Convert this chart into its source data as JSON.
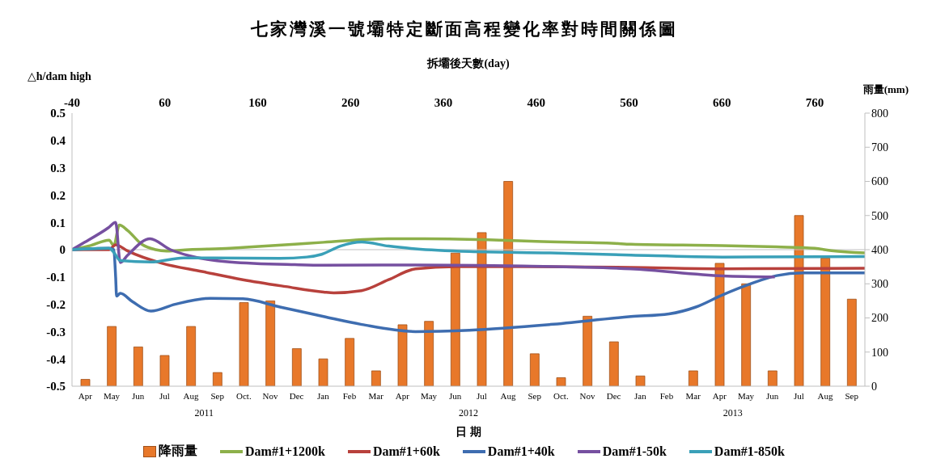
{
  "chart_data": {
    "type": "bar",
    "title": "七家灣溪一號壩特定斷面高程變化率對時間關係圖",
    "xlabel": "日 期",
    "x2label": "拆壩後天數(day)",
    "ylabel": "△h/dam high",
    "y2label": "雨量(mm)",
    "categories": [
      "Apr",
      "May",
      "Jun",
      "Jul",
      "Aug",
      "Sep",
      "Oct.",
      "Nov",
      "Dec",
      "Jan",
      "Feb",
      "Mar",
      "Apr",
      "May",
      "Jun",
      "Jul",
      "Aug",
      "Sep",
      "Oct.",
      "Nov",
      "Dec",
      "Jan",
      "Feb",
      "Mar",
      "Apr",
      "May",
      "Jun",
      "Jul",
      "Aug",
      "Sep"
    ],
    "annotations": [
      "2011",
      "2012",
      "2013"
    ],
    "ylim": [
      -0.5,
      0.5
    ],
    "yticks": [
      -0.5,
      -0.4,
      -0.3,
      -0.2,
      -0.1,
      0,
      0.1,
      0.2,
      0.3,
      0.4,
      0.5
    ],
    "y2lim": [
      0,
      800
    ],
    "y2ticks": [
      0,
      100,
      200,
      300,
      400,
      500,
      600,
      700,
      800
    ],
    "x2lim": [
      -40,
      814
    ],
    "x2ticks": [
      -40,
      60,
      160,
      260,
      360,
      460,
      560,
      660,
      760
    ],
    "ref_lines": [
      {
        "axis": "y",
        "value": 0,
        "color": "#bfbfbf"
      }
    ],
    "legend": "bottom",
    "marker": "none",
    "line_style": "solid",
    "series": [
      {
        "name": "降雨量",
        "axis": "y2",
        "color": "#e8782a",
        "values": [
          20,
          175,
          115,
          90,
          175,
          40,
          245,
          250,
          110,
          80,
          140,
          45,
          180,
          190,
          390,
          450,
          600,
          95,
          25,
          205,
          130,
          30,
          0,
          45,
          360,
          300,
          45,
          500,
          375,
          255
        ]
      },
      {
        "name": "Dam#1+1200k",
        "type": "line",
        "axis": "x2",
        "color": "#8db04a",
        "x": [
          -40,
          -20,
          0,
          5,
          11,
          20,
          35,
          50,
          62,
          86,
          130,
          144,
          200,
          231,
          300,
          340,
          420,
          460,
          545,
          562,
          660,
          719,
          760,
          778,
          814
        ],
        "values": [
          0,
          0.015,
          0.035,
          0.015,
          0.09,
          0.07,
          0.02,
          0,
          -0.005,
          0,
          0.005,
          0.008,
          0.02,
          0.027,
          0.04,
          0.04,
          0.035,
          0.03,
          0.023,
          0.02,
          0.015,
          0.01,
          0.005,
          -0.004,
          -0.012
        ]
      },
      {
        "name": "Dam#1+60k",
        "type": "line",
        "axis": "x2",
        "color": "#b8413c",
        "x": [
          -40,
          0,
          7,
          20,
          57,
          100,
          144,
          190,
          231,
          242,
          272,
          301,
          330,
          373,
          446,
          562,
          661,
          814
        ],
        "values": [
          0,
          0,
          0.018,
          -0.005,
          -0.05,
          -0.08,
          -0.11,
          -0.135,
          -0.155,
          -0.158,
          -0.15,
          -0.11,
          -0.07,
          -0.062,
          -0.062,
          -0.065,
          -0.07,
          -0.068
        ]
      },
      {
        "name": "Dam#1+40k",
        "type": "line",
        "axis": "x2",
        "color": "#3e6db0",
        "x": [
          -40,
          0,
          5,
          7,
          8,
          12,
          25,
          45,
          71,
          109,
          144,
          184,
          231,
          272,
          330,
          388,
          475,
          562,
          603,
          632,
          661,
          690,
          719,
          748,
          814
        ],
        "values": [
          0,
          0.005,
          0,
          -0.1,
          -0.17,
          -0.16,
          -0.19,
          -0.225,
          -0.2,
          -0.178,
          -0.18,
          -0.21,
          -0.245,
          -0.274,
          -0.3,
          -0.295,
          -0.274,
          -0.245,
          -0.235,
          -0.21,
          -0.165,
          -0.126,
          -0.095,
          -0.085,
          -0.085
        ]
      },
      {
        "name": "Dam#1-50k",
        "type": "line",
        "axis": "x2",
        "color": "#7650a0",
        "x": [
          -40,
          -30,
          -1,
          7,
          12,
          20,
          44,
          66,
          86,
          130,
          200,
          231,
          330,
          446,
          562,
          661,
          717
        ],
        "values": [
          0,
          0.02,
          0.08,
          0.1,
          -0.047,
          -0.02,
          0.04,
          0,
          -0.022,
          -0.045,
          -0.055,
          -0.057,
          -0.056,
          -0.06,
          -0.07,
          -0.096,
          -0.1
        ]
      },
      {
        "name": "Dam#1-850k",
        "type": "line",
        "axis": "x2",
        "color": "#3aa0b8",
        "x": [
          -40,
          0,
          5,
          12,
          45,
          80,
          113,
          184,
          213,
          229,
          249,
          272,
          301,
          330,
          388,
          475,
          562,
          661,
          814
        ],
        "values": [
          0,
          0.005,
          -0.01,
          -0.04,
          -0.045,
          -0.03,
          -0.03,
          -0.032,
          -0.027,
          -0.017,
          0.013,
          0.028,
          0.013,
          0.003,
          -0.007,
          -0.012,
          -0.02,
          -0.027,
          -0.025
        ]
      }
    ]
  }
}
